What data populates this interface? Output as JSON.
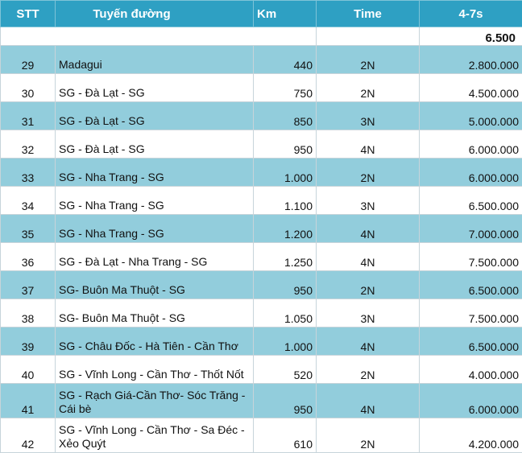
{
  "table": {
    "headers": {
      "stt": "STT",
      "route": "Tuyến đường",
      "km": "Km",
      "time": "Time",
      "price": "4-7s"
    },
    "summary_value": "6.500",
    "rows": [
      {
        "stt": "29",
        "route": "Madagui",
        "km": "440",
        "time": "2N",
        "price": "2.800.000",
        "shaded": true
      },
      {
        "stt": "30",
        "route": "SG - Đà Lạt - SG",
        "km": "750",
        "time": "2N",
        "price": "4.500.000",
        "shaded": false
      },
      {
        "stt": "31",
        "route": "SG - Đà Lạt - SG",
        "km": "850",
        "time": "3N",
        "price": "5.000.000",
        "shaded": true
      },
      {
        "stt": "32",
        "route": "SG - Đà Lạt - SG",
        "km": "950",
        "time": "4N",
        "price": "6.000.000",
        "shaded": false
      },
      {
        "stt": "33",
        "route": "SG - Nha Trang - SG",
        "km": "1.000",
        "time": "2N",
        "price": "6.000.000",
        "shaded": true
      },
      {
        "stt": "34",
        "route": "SG - Nha Trang - SG",
        "km": "1.100",
        "time": "3N",
        "price": "6.500.000",
        "shaded": false
      },
      {
        "stt": "35",
        "route": "SG - Nha Trang - SG",
        "km": "1.200",
        "time": "4N",
        "price": "7.000.000",
        "shaded": true
      },
      {
        "stt": "36",
        "route": "SG - Đà Lạt - Nha Trang - SG",
        "km": "1.250",
        "time": "4N",
        "price": "7.500.000",
        "shaded": false
      },
      {
        "stt": "37",
        "route": "SG- Buôn Ma Thuột - SG",
        "km": "950",
        "time": "2N",
        "price": "6.500.000",
        "shaded": true
      },
      {
        "stt": "38",
        "route": "SG- Buôn Ma Thuột - SG",
        "km": "1.050",
        "time": "3N",
        "price": "7.500.000",
        "shaded": false
      },
      {
        "stt": "39",
        "route": "SG - Châu Đốc - Hà Tiên - Cần Thơ",
        "km": "1.000",
        "time": "4N",
        "price": "6.500.000",
        "shaded": true
      },
      {
        "stt": "40",
        "route": "SG - Vĩnh Long - Cần Thơ - Thốt Nốt",
        "km": "520",
        "time": "2N",
        "price": "4.000.000",
        "shaded": false
      },
      {
        "stt": "41",
        "route": "SG - Rạch Giá-Cần Thơ- Sóc Trăng - Cái bè",
        "km": "950",
        "time": "4N",
        "price": "6.000.000",
        "shaded": true
      },
      {
        "stt": "42",
        "route": "SG - Vĩnh Long - Cần Thơ - Sa Đéc - Xẻo Quýt",
        "km": "610",
        "time": "2N",
        "price": "4.200.000",
        "shaded": false
      }
    ]
  }
}
